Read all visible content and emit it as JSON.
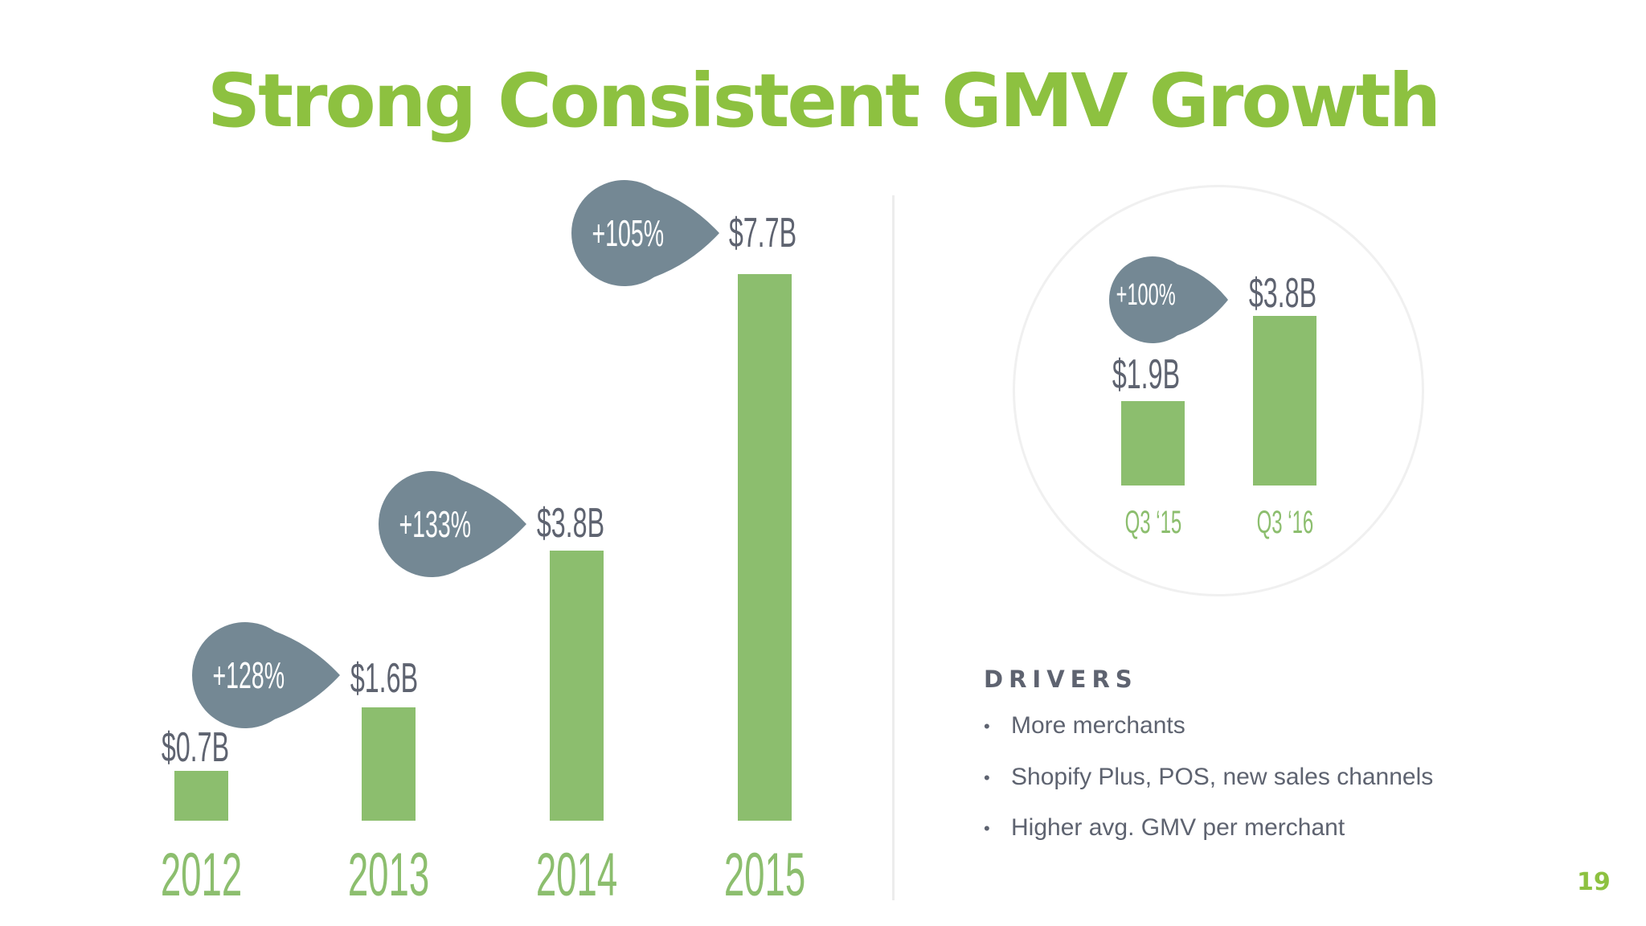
{
  "title": "Strong Consistent GMV Growth",
  "page_number": "19",
  "colors": {
    "title": "#8dc140",
    "bar": "#8cbe6e",
    "bubble": "#748894",
    "text": "#5e6370"
  },
  "chart_data": [
    {
      "type": "bar",
      "categories": [
        "2012",
        "2013",
        "2014",
        "2015"
      ],
      "values": [
        0.7,
        1.6,
        3.8,
        7.7
      ],
      "value_labels": [
        "$0.7B",
        "$1.6B",
        "$3.8B",
        "$7.7B"
      ],
      "growth_labels": [
        "+128%",
        "+133%",
        "+105%"
      ],
      "unit": "$B"
    },
    {
      "type": "bar",
      "categories": [
        "Q3 ‘15",
        "Q3 ‘16"
      ],
      "values": [
        1.9,
        3.8
      ],
      "value_labels": [
        "$1.9B",
        "$3.8B"
      ],
      "growth_labels": [
        "+100%"
      ],
      "unit": "$B"
    }
  ],
  "drivers": {
    "heading": "DRIVERS",
    "items": [
      "More merchants",
      "Shopify Plus, POS, new sales channels",
      "Higher avg. GMV per merchant"
    ]
  }
}
